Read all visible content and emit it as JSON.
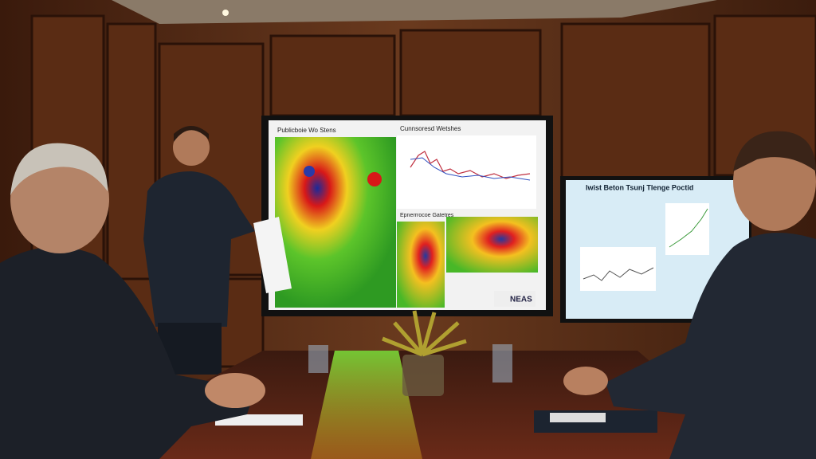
{
  "main_screen": {
    "map_title": "Publicboie Wo Stens",
    "chart_title": "Cunnsoresd Wetshes",
    "caption": "Epnerrrocoe Gatetres",
    "logo": "NEAS"
  },
  "side_screen": {
    "title": "Iwist Beton Tsunj Tlenge Poctid"
  }
}
